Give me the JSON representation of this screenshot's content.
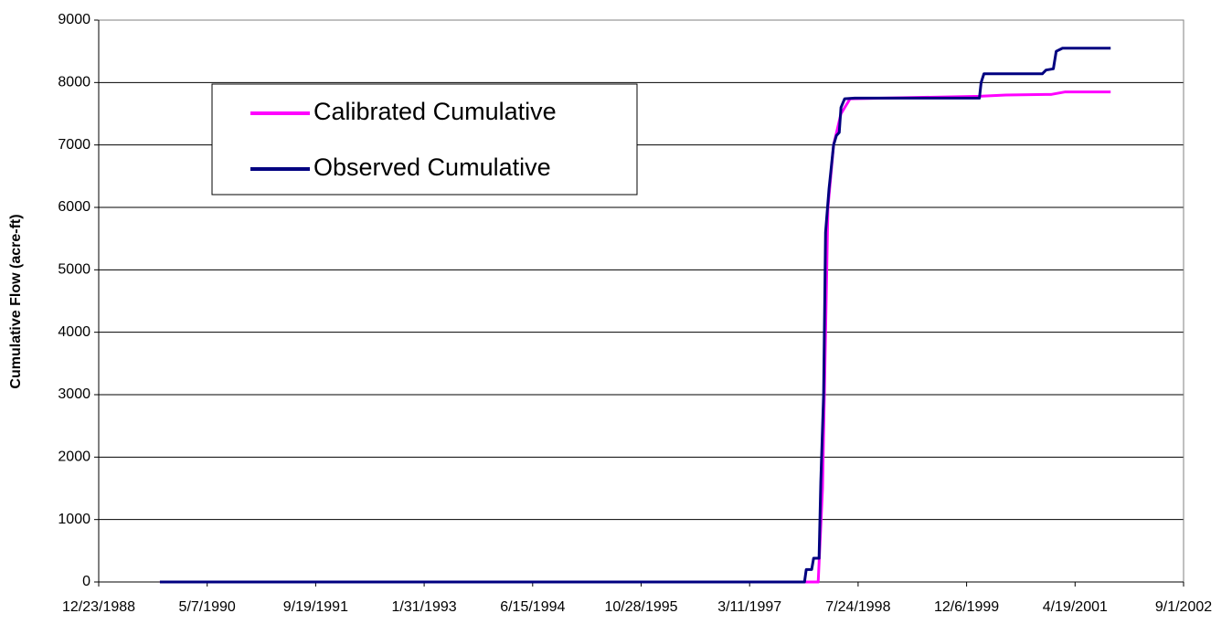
{
  "chart_data": {
    "type": "line",
    "y_label": "Cumulative Flow (acre-ft)",
    "xlim": [
      "12/23/1988",
      "9/1/2002"
    ],
    "xticks": [
      "12/23/1988",
      "5/7/1990",
      "9/19/1991",
      "1/31/1993",
      "6/15/1994",
      "10/28/1995",
      "3/11/1997",
      "7/24/1998",
      "12/6/1999",
      "4/19/2001",
      "9/1/2002"
    ],
    "ylim": [
      0,
      9000
    ],
    "yticks": [
      0,
      1000,
      2000,
      3000,
      4000,
      5000,
      6000,
      7000,
      8000,
      9000
    ],
    "grid": true,
    "series": [
      {
        "name": "Calibrated Cumulative",
        "color": "#ff00ff",
        "x": [
          "10/1/1989",
          "1/21/1998",
          "2/10/1998",
          "2/24/1998",
          "3/7/1998",
          "4/2/1998",
          "5/6/1998",
          "6/17/1998",
          "2/3/2000",
          "6/4/2000",
          "12/31/2000",
          "3/5/2001",
          "9/30/2001"
        ],
        "values": [
          0,
          0,
          1500,
          4000,
          6000,
          7000,
          7500,
          7740,
          7780,
          7800,
          7810,
          7850,
          7850
        ]
      },
      {
        "name": "Observed Cumulative",
        "color": "#000080",
        "x": [
          "10/1/1989",
          "11/19/1997",
          "11/27/1997",
          "12/22/1997",
          "12/31/1997",
          "1/25/1998",
          "2/2/1998",
          "2/15/1998",
          "2/24/1998",
          "3/12/1998",
          "4/2/1998",
          "4/15/1998",
          "4/28/1998",
          "5/6/1998",
          "5/23/1998",
          "7/8/1998",
          "2/3/2000",
          "2/11/2000",
          "2/24/2000",
          "11/19/2000",
          "12/6/2000",
          "1/9/2001",
          "1/22/2001",
          "2/20/2001",
          "9/30/2001"
        ],
        "values": [
          0,
          0,
          200,
          200,
          380,
          380,
          1600,
          3000,
          5600,
          6300,
          7000,
          7150,
          7200,
          7600,
          7740,
          7750,
          7750,
          8000,
          8140,
          8140,
          8200,
          8220,
          8500,
          8550,
          8550
        ]
      }
    ]
  }
}
